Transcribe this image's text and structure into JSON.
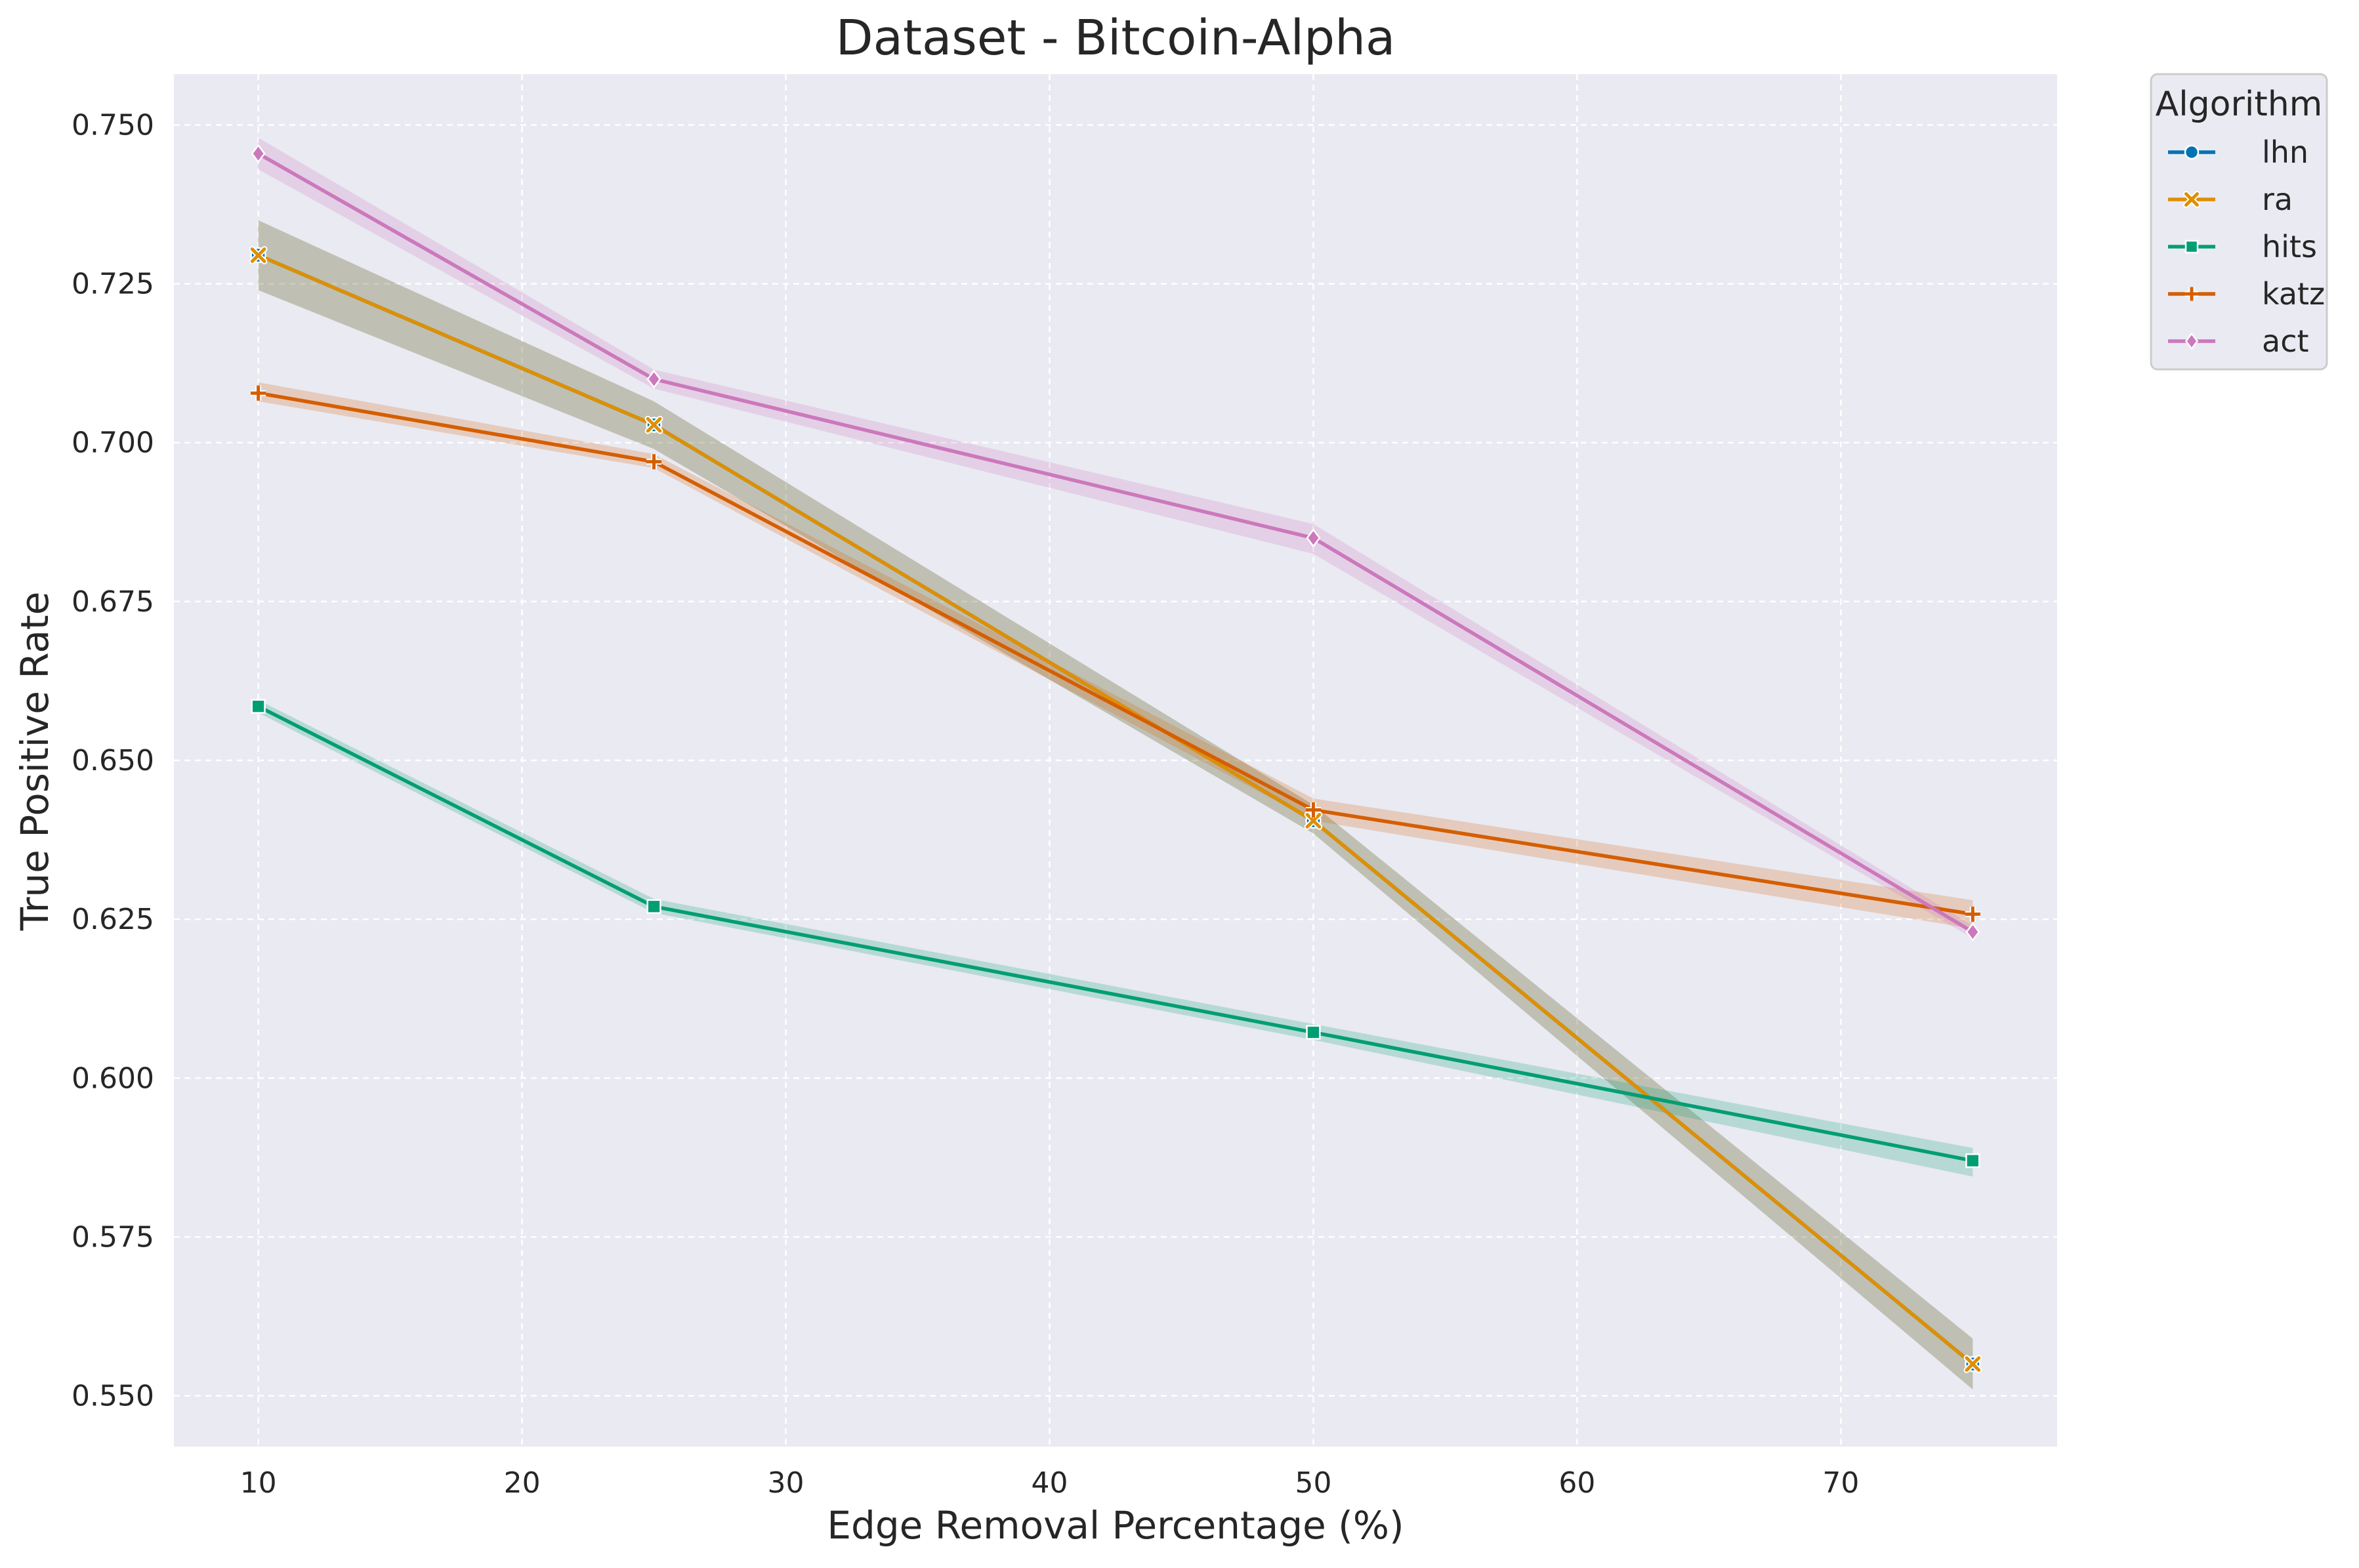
{
  "chart_data": {
    "type": "line",
    "title": "Dataset - Bitcoin-Alpha",
    "xlabel": "Edge Removal Percentage (%)",
    "ylabel": "True Positive Rate",
    "xlim": [
      6.8,
      78.2
    ],
    "ylim": [
      0.542,
      0.758
    ],
    "xticks": [
      10,
      20,
      30,
      40,
      50,
      60,
      70
    ],
    "yticks": [
      0.55,
      0.575,
      0.6,
      0.625,
      0.65,
      0.675,
      0.7,
      0.725,
      0.75
    ],
    "ytick_labels": [
      "0.550",
      "0.575",
      "0.600",
      "0.625",
      "0.650",
      "0.675",
      "0.700",
      "0.725",
      "0.750"
    ],
    "grid": true,
    "background": "#eaeaf2",
    "legend": {
      "title": "Algorithm",
      "placement": "outside-top-right"
    },
    "x": [
      10,
      25,
      50,
      75
    ],
    "series": [
      {
        "name": "lhn",
        "color": "#0173b2",
        "marker": "circle",
        "values": [
          0.7295,
          0.7028,
          0.6405,
          0.555
        ],
        "ci_low": [
          0.724,
          0.699,
          0.6385,
          0.551
        ],
        "ci_high": [
          0.735,
          0.7065,
          0.643,
          0.559
        ]
      },
      {
        "name": "ra",
        "color": "#de8f05",
        "marker": "x",
        "values": [
          0.7295,
          0.7028,
          0.6405,
          0.555
        ],
        "ci_low": [
          0.724,
          0.699,
          0.6385,
          0.551
        ],
        "ci_high": [
          0.735,
          0.7065,
          0.643,
          0.559
        ]
      },
      {
        "name": "hits",
        "color": "#029e73",
        "marker": "square",
        "values": [
          0.6585,
          0.627,
          0.6072,
          0.587
        ],
        "ci_low": [
          0.6575,
          0.626,
          0.606,
          0.5845
        ],
        "ci_high": [
          0.6595,
          0.6282,
          0.6085,
          0.589
        ]
      },
      {
        "name": "katz",
        "color": "#d55e00",
        "marker": "plus",
        "values": [
          0.7078,
          0.697,
          0.6422,
          0.6258
        ],
        "ci_low": [
          0.7065,
          0.696,
          0.6405,
          0.6235
        ],
        "ci_high": [
          0.7095,
          0.6982,
          0.644,
          0.628
        ]
      },
      {
        "name": "act",
        "color": "#cc78bc",
        "marker": "diamond",
        "values": [
          0.7455,
          0.71,
          0.685,
          0.623
        ],
        "ci_low": [
          0.743,
          0.7085,
          0.6825,
          0.622
        ],
        "ci_high": [
          0.748,
          0.7115,
          0.6872,
          0.624
        ]
      }
    ]
  }
}
